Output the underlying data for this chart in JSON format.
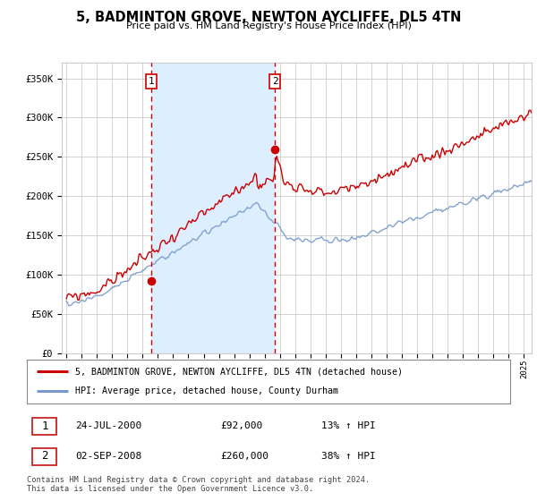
{
  "title": "5, BADMINTON GROVE, NEWTON AYCLIFFE, DL5 4TN",
  "subtitle": "Price paid vs. HM Land Registry's House Price Index (HPI)",
  "legend_line1": "5, BADMINTON GROVE, NEWTON AYCLIFFE, DL5 4TN (detached house)",
  "legend_line2": "HPI: Average price, detached house, County Durham",
  "transaction1_date": "24-JUL-2000",
  "transaction1_price": "£92,000",
  "transaction1_hpi": "13% ↑ HPI",
  "transaction2_date": "02-SEP-2008",
  "transaction2_price": "£260,000",
  "transaction2_hpi": "38% ↑ HPI",
  "footer": "Contains HM Land Registry data © Crown copyright and database right 2024.\nThis data is licensed under the Open Government Licence v3.0.",
  "red_color": "#cc0000",
  "blue_color": "#7799cc",
  "shade_color": "#ddeeff",
  "vline_color": "#cc0000",
  "grid_color": "#cccccc",
  "plot_bg": "#ffffff",
  "ylim": [
    0,
    370000
  ],
  "yticks": [
    0,
    50000,
    100000,
    150000,
    200000,
    250000,
    300000,
    350000
  ],
  "transaction1_x": 2000.56,
  "transaction1_y": 92000,
  "transaction2_x": 2008.67,
  "transaction2_y": 260000,
  "xmin": 1994.7,
  "xmax": 2025.5
}
